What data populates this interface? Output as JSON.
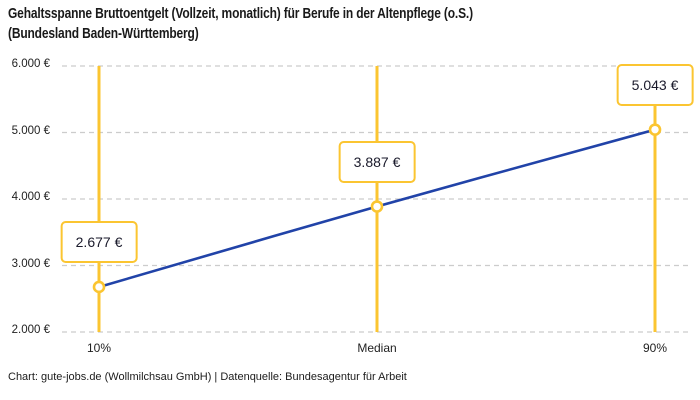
{
  "title": {
    "line1": "Gehaltsspanne Bruttoentgelt (Vollzeit, monatlich) für Berufe in der Altenpflege (o.S.)",
    "line2": "(Bundesland Baden-Württemberg)"
  },
  "footer": "Chart: gute-jobs.de (Wollmilchsau GmbH) | Datenquelle: Bundesagentur für Arbeit",
  "colors": {
    "accent_yellow": "#fbc531",
    "line_blue": "#2143a8",
    "grid_gray": "#cccccc",
    "text_dark": "#1a1a1a",
    "marker_fill": "#ffffff"
  },
  "chart_data": {
    "type": "line",
    "title": "Gehaltsspanne Bruttoentgelt (Vollzeit, monatlich) für Berufe in der Altenpflege (o.S.) (Bundesland Baden-Württemberg)",
    "categories": [
      "10%",
      "Median",
      "90%"
    ],
    "values": [
      2677,
      3887,
      5043
    ],
    "point_labels": [
      "2.677 €",
      "3.887 €",
      "5.043 €"
    ],
    "ytick_labels": [
      "6.000 €",
      "5.000 €",
      "4.000 €",
      "3.000 €",
      "2.000 €"
    ],
    "ytick_values": [
      6000,
      5000,
      4000,
      3000,
      2000
    ],
    "ylim": [
      2000,
      6000
    ],
    "grid": "horizontal-dashed",
    "legend": "none",
    "annotations": "vertical percentile guide lines in yellow with value callout boxes"
  }
}
